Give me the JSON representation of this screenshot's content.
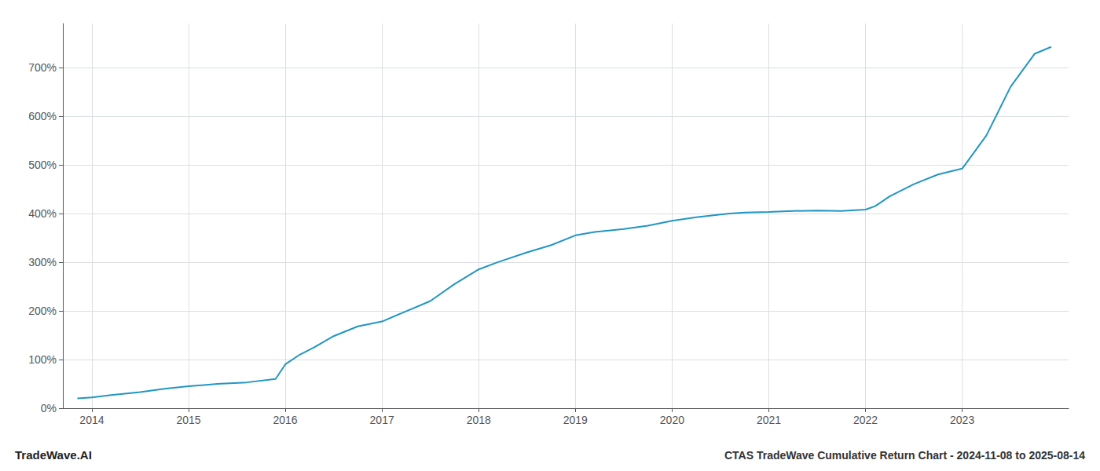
{
  "chart_data": {
    "type": "line",
    "title": "CTAS TradeWave Cumulative Return Chart - 2024-11-08 to 2025-08-14",
    "annotations": [
      {
        "text": "TradeWave.AI"
      }
    ],
    "x": [
      2013.85,
      2014.0,
      2014.2,
      2014.5,
      2014.75,
      2015.0,
      2015.3,
      2015.6,
      2015.9,
      2016.0,
      2016.15,
      2016.3,
      2016.5,
      2016.75,
      2017.0,
      2017.2,
      2017.5,
      2017.75,
      2018.0,
      2018.2,
      2018.5,
      2018.75,
      2019.0,
      2019.2,
      2019.5,
      2019.75,
      2020.0,
      2020.25,
      2020.5,
      2020.6,
      2020.75,
      2021.0,
      2021.25,
      2021.5,
      2021.75,
      2022.0,
      2022.1,
      2022.25,
      2022.5,
      2022.75,
      2023.0,
      2023.25,
      2023.5,
      2023.75,
      2023.92
    ],
    "values": [
      20,
      22,
      27,
      33,
      40,
      45,
      50,
      53,
      60,
      90,
      110,
      125,
      148,
      168,
      178,
      195,
      220,
      255,
      285,
      300,
      320,
      335,
      355,
      362,
      368,
      375,
      385,
      392,
      398,
      400,
      402,
      403,
      405,
      406,
      405,
      408,
      415,
      435,
      460,
      480,
      492,
      560,
      660,
      728,
      742
    ],
    "color": "#2196c4",
    "xlim": [
      2013.7,
      2024.1
    ],
    "xticks": [
      2014,
      2015,
      2016,
      2017,
      2018,
      2019,
      2020,
      2021,
      2022,
      2023
    ],
    "ylim": [
      0,
      790
    ],
    "yticks": [
      {
        "value": 0,
        "label": "0%"
      },
      {
        "value": 100,
        "label": "100%"
      },
      {
        "value": 200,
        "label": "200%"
      },
      {
        "value": 300,
        "label": "300%"
      },
      {
        "value": 400,
        "label": "400%"
      },
      {
        "value": 500,
        "label": "500%"
      },
      {
        "value": 600,
        "label": "600%"
      },
      {
        "value": 700,
        "label": "700%"
      }
    ],
    "grid": true
  }
}
